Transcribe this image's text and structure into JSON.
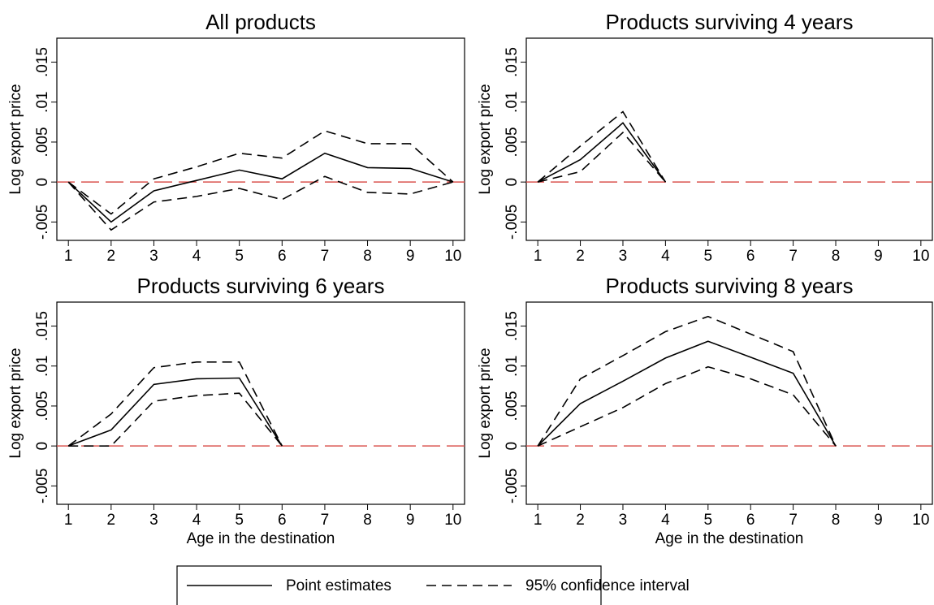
{
  "chart_data": [
    {
      "type": "line",
      "title": "All products",
      "ylabel": "Log export price",
      "x": [
        1,
        2,
        3,
        4,
        5,
        6,
        7,
        8,
        9,
        10
      ],
      "series": [
        {
          "style": "solid",
          "color": "#000000",
          "values": [
            0,
            -0.005,
            -0.0011,
            0.0002,
            0.0015,
            0.0004,
            0.0036,
            0.0018,
            0.0017,
            0
          ]
        },
        {
          "style": "dashed",
          "color": "#000000",
          "values": [
            0,
            -0.004,
            0.0004,
            0.0019,
            0.0036,
            0.003,
            0.0064,
            0.0048,
            0.0048,
            0
          ]
        },
        {
          "style": "dashed",
          "color": "#000000",
          "values": [
            0,
            -0.006,
            -0.0025,
            -0.0018,
            -0.0008,
            -0.0022,
            0.0007,
            -0.0013,
            -0.0015,
            0
          ]
        }
      ],
      "refline": {
        "value": 0,
        "color": "#d9534f"
      },
      "xlim": [
        0.73,
        10.27
      ],
      "xticks": [
        1,
        2,
        3,
        4,
        5,
        6,
        7,
        8,
        9,
        10
      ],
      "ylim": [
        -0.0073,
        0.018
      ],
      "yticks": [
        {
          "value": -0.005,
          "label": "-.005"
        },
        0,
        {
          "value": 0.005,
          "label": ".005"
        },
        {
          "value": 0.01,
          "label": ".01"
        },
        {
          "value": 0.015,
          "label": ".015"
        }
      ]
    },
    {
      "type": "line",
      "title": "Products surviving 4 years",
      "ylabel": "Log export price",
      "x": [
        1,
        2,
        3,
        4
      ],
      "series": [
        {
          "style": "solid",
          "color": "#000000",
          "values": [
            0,
            0.0028,
            0.0074,
            0
          ]
        },
        {
          "style": "dashed",
          "color": "#000000",
          "values": [
            0,
            0.0045,
            0.0088,
            0
          ]
        },
        {
          "style": "dashed",
          "color": "#000000",
          "values": [
            0,
            0.0013,
            0.0062,
            0
          ]
        }
      ],
      "refline": {
        "value": 0,
        "color": "#d9534f"
      },
      "xlim": [
        0.73,
        10.27
      ],
      "xticks": [
        1,
        2,
        3,
        4,
        5,
        6,
        7,
        8,
        9,
        10
      ],
      "ylim": [
        -0.0073,
        0.018
      ],
      "yticks": [
        {
          "value": -0.005,
          "label": "-.005"
        },
        0,
        {
          "value": 0.005,
          "label": ".005"
        },
        {
          "value": 0.01,
          "label": ".01"
        },
        {
          "value": 0.015,
          "label": ".015"
        }
      ]
    },
    {
      "type": "line",
      "title": "Products surviving 6 years",
      "ylabel": "Log export price",
      "xlabel": "Age in the destination",
      "x": [
        1,
        2,
        3,
        4,
        5,
        6
      ],
      "series": [
        {
          "style": "solid",
          "color": "#000000",
          "values": [
            0,
            0.002,
            0.0077,
            0.0084,
            0.0085,
            0
          ]
        },
        {
          "style": "dashed",
          "color": "#000000",
          "values": [
            0,
            0.004,
            0.0098,
            0.0105,
            0.0105,
            0
          ]
        },
        {
          "style": "dashed",
          "color": "#000000",
          "values": [
            0,
            0,
            0.0056,
            0.0063,
            0.0066,
            0
          ]
        }
      ],
      "refline": {
        "value": 0,
        "color": "#d9534f"
      },
      "xlim": [
        0.73,
        10.27
      ],
      "xticks": [
        1,
        2,
        3,
        4,
        5,
        6,
        7,
        8,
        9,
        10
      ],
      "ylim": [
        -0.0073,
        0.018
      ],
      "yticks": [
        {
          "value": -0.005,
          "label": "-.005"
        },
        0,
        {
          "value": 0.005,
          "label": ".005"
        },
        {
          "value": 0.01,
          "label": ".01"
        },
        {
          "value": 0.015,
          "label": ".015"
        }
      ]
    },
    {
      "type": "line",
      "title": "Products surviving 8 years",
      "ylabel": "Log export price",
      "xlabel": "Age in the destination",
      "x": [
        1,
        2,
        3,
        4,
        5,
        6,
        7,
        8
      ],
      "series": [
        {
          "style": "solid",
          "color": "#000000",
          "values": [
            0,
            0.0053,
            0.0081,
            0.011,
            0.0131,
            0.0111,
            0.0091,
            0
          ]
        },
        {
          "style": "dashed",
          "color": "#000000",
          "values": [
            0,
            0.0084,
            0.0113,
            0.0143,
            0.0162,
            0.014,
            0.0118,
            0
          ]
        },
        {
          "style": "dashed",
          "color": "#000000",
          "values": [
            0,
            0.0024,
            0.0048,
            0.0078,
            0.0099,
            0.0084,
            0.0064,
            0
          ]
        }
      ],
      "refline": {
        "value": 0,
        "color": "#d9534f"
      },
      "xlim": [
        0.73,
        10.27
      ],
      "xticks": [
        1,
        2,
        3,
        4,
        5,
        6,
        7,
        8,
        9,
        10
      ],
      "ylim": [
        -0.0073,
        0.018
      ],
      "yticks": [
        {
          "value": -0.005,
          "label": "-.005"
        },
        0,
        {
          "value": 0.005,
          "label": ".005"
        },
        {
          "value": 0.01,
          "label": ".01"
        },
        {
          "value": 0.015,
          "label": ".015"
        }
      ]
    }
  ],
  "legend": {
    "entries": [
      {
        "label": "Point estimates",
        "style": "solid"
      },
      {
        "label": "95% confidence interval",
        "style": "dashed"
      }
    ]
  }
}
